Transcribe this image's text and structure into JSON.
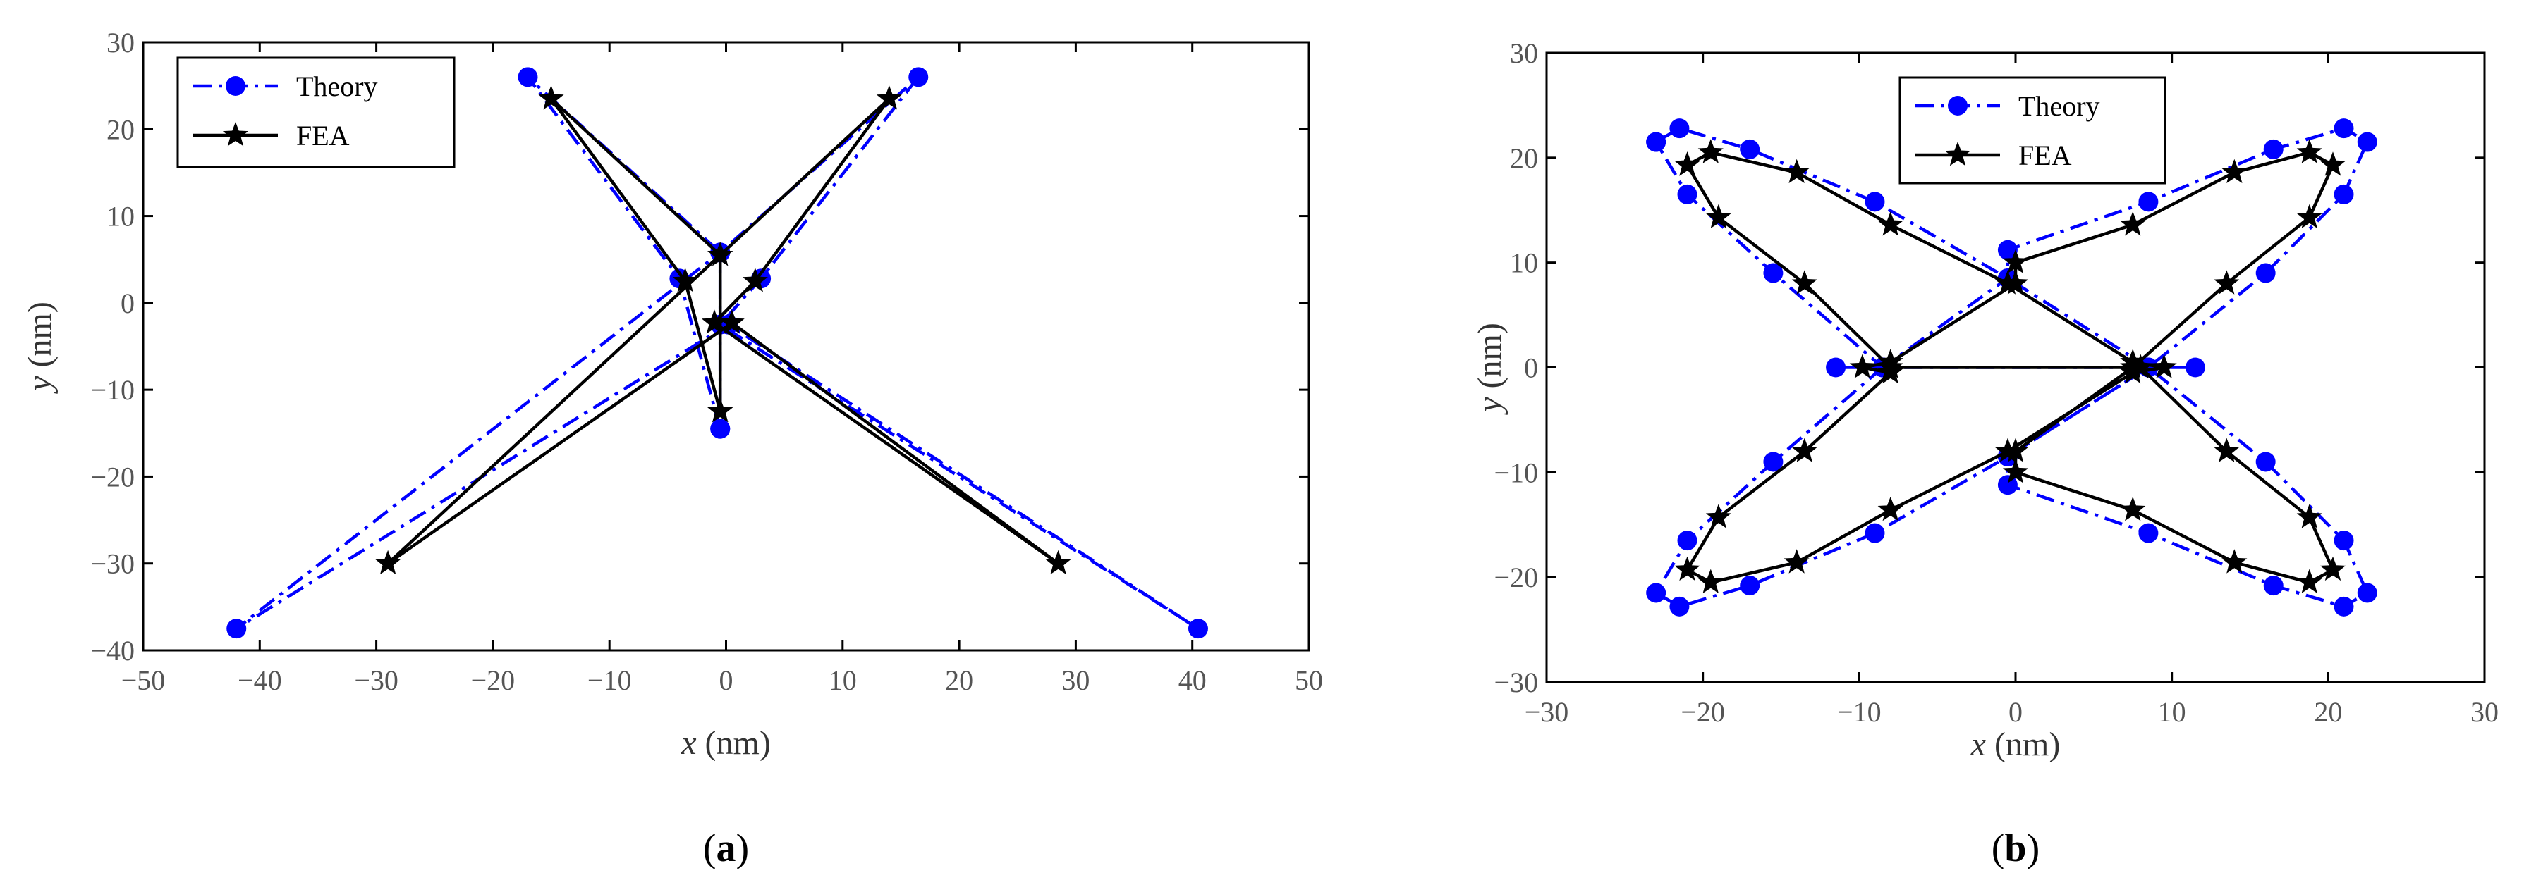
{
  "chart_data": [
    {
      "panel": "(a)",
      "panel_letter": "a",
      "type": "line",
      "title": "",
      "xlabel": "x (nm)",
      "xlabel_var": "x",
      "xlabel_unit": "(nm)",
      "ylabel": "y (nm)",
      "ylabel_var": "y",
      "ylabel_unit": "(nm)",
      "xlim": [
        -50,
        50
      ],
      "ylim": [
        -40,
        30
      ],
      "xticks": [
        -50,
        -40,
        -30,
        -20,
        -10,
        0,
        10,
        20,
        30,
        40,
        50
      ],
      "yticks": [
        -40,
        -30,
        -20,
        -10,
        0,
        10,
        20,
        30
      ],
      "xtick_labels": [
        "−50",
        "−40",
        "−30",
        "−20",
        "−10",
        "0",
        "10",
        "20",
        "30",
        "40",
        "50"
      ],
      "ytick_labels": [
        "−40",
        "−30",
        "−20",
        "−10",
        "0",
        "10",
        "20",
        "30"
      ],
      "grid": false,
      "legend_position": "top-left",
      "series": [
        {
          "name": "Theory",
          "color": "#0000ff",
          "line_style": "dash-dot",
          "marker": "circle",
          "points": [
            [
              -0.5,
              -14.5
            ],
            [
              -4,
              2.8
            ],
            [
              -17,
              26
            ],
            [
              -0.5,
              5.8
            ],
            [
              16.5,
              26
            ],
            [
              3,
              2.8
            ],
            [
              -0.5,
              -2.5
            ],
            [
              40.5,
              -37.5
            ],
            [
              0.2,
              -2.5
            ],
            [
              -42,
              -37.5
            ],
            [
              -0.5,
              5.8
            ],
            [
              -0.5,
              -14.5
            ]
          ]
        },
        {
          "name": "FEA",
          "color": "#000000",
          "line_style": "solid",
          "marker": "star",
          "points": [
            [
              -0.5,
              -12.5
            ],
            [
              -3.5,
              2.5
            ],
            [
              -15,
              23.5
            ],
            [
              -0.5,
              5.5
            ],
            [
              14,
              23.5
            ],
            [
              2.5,
              2.5
            ],
            [
              -1,
              -2.3
            ],
            [
              28.5,
              -30
            ],
            [
              0.5,
              -2.3
            ],
            [
              -29,
              -30
            ],
            [
              -0.5,
              5.5
            ],
            [
              -0.5,
              -12.5
            ]
          ]
        }
      ]
    },
    {
      "panel": "(b)",
      "panel_letter": "b",
      "type": "line",
      "title": "",
      "xlabel": "x (nm)",
      "xlabel_var": "x",
      "xlabel_unit": "(nm)",
      "ylabel": "y (nm)",
      "ylabel_var": "y",
      "ylabel_unit": "(nm)",
      "xlim": [
        -30,
        30
      ],
      "ylim": [
        -30,
        30
      ],
      "xticks": [
        -30,
        -20,
        -10,
        0,
        10,
        20,
        30
      ],
      "yticks": [
        -30,
        -20,
        -10,
        0,
        10,
        20,
        30
      ],
      "xtick_labels": [
        "−30",
        "−20",
        "−10",
        "0",
        "10",
        "20",
        "30"
      ],
      "ytick_labels": [
        "−30",
        "−20",
        "−10",
        "0",
        "10",
        "20",
        "30"
      ],
      "grid": false,
      "legend_position": "top-center",
      "series": [
        {
          "name": "Theory",
          "color": "#0000ff",
          "line_style": "dash-dot",
          "marker": "circle",
          "points": [
            [
              -23,
              21.5
            ],
            [
              -21.5,
              22.8
            ],
            [
              -17,
              20.8
            ],
            [
              -9,
              15.8
            ],
            [
              -0.5,
              8.5
            ],
            [
              8.5,
              0
            ],
            [
              11.5,
              0
            ],
            [
              8.5,
              0
            ],
            [
              -0.5,
              -8.5
            ],
            [
              -9,
              -15.8
            ],
            [
              -17,
              -20.8
            ],
            [
              -21.5,
              -22.8
            ],
            [
              -23,
              -21.5
            ],
            [
              -21,
              -16.5
            ],
            [
              -15.5,
              -9
            ],
            [
              -8.5,
              0
            ],
            [
              -11.5,
              0
            ],
            [
              -8.5,
              0
            ],
            [
              -0.5,
              8.5
            ],
            [
              -0.5,
              11.2
            ],
            [
              8.5,
              15.8
            ],
            [
              16.5,
              20.8
            ],
            [
              21,
              22.8
            ],
            [
              22.5,
              21.5
            ],
            [
              21,
              16.5
            ],
            [
              16,
              9
            ],
            [
              8.5,
              0
            ],
            [
              -0.5,
              -8.5
            ],
            [
              -0.5,
              -11.2
            ],
            [
              8.5,
              -15.8
            ],
            [
              16.5,
              -20.8
            ],
            [
              21,
              -22.8
            ],
            [
              22.5,
              -21.5
            ],
            [
              21,
              -16.5
            ],
            [
              16,
              -9
            ],
            [
              8.5,
              0
            ],
            [
              -8.5,
              0
            ],
            [
              -15.5,
              9
            ],
            [
              -21,
              16.5
            ],
            [
              -23,
              21.5
            ]
          ]
        },
        {
          "name": "FEA",
          "color": "#000000",
          "line_style": "solid",
          "marker": "star",
          "points": [
            [
              -21,
              19.3
            ],
            [
              -19.5,
              20.5
            ],
            [
              -14,
              18.6
            ],
            [
              -8,
              13.6
            ],
            [
              -0.5,
              8
            ],
            [
              7.5,
              0.5
            ],
            [
              9.5,
              0
            ],
            [
              7.5,
              -0.5
            ],
            [
              -0.5,
              -8
            ],
            [
              -8,
              -13.6
            ],
            [
              -14,
              -18.6
            ],
            [
              -19.5,
              -20.5
            ],
            [
              -21,
              -19.3
            ],
            [
              -19,
              -14.3
            ],
            [
              -13.5,
              -8
            ],
            [
              -8,
              -0.5
            ],
            [
              -9.8,
              0
            ],
            [
              -8,
              0.5
            ],
            [
              0,
              8
            ],
            [
              0,
              10
            ],
            [
              7.5,
              13.6
            ],
            [
              14,
              18.6
            ],
            [
              18.8,
              20.5
            ],
            [
              20.3,
              19.3
            ],
            [
              18.8,
              14.3
            ],
            [
              13.5,
              8
            ],
            [
              7.5,
              0
            ],
            [
              0,
              -8
            ],
            [
              0,
              -10
            ],
            [
              7.5,
              -13.6
            ],
            [
              14,
              -18.6
            ],
            [
              18.8,
              -20.5
            ],
            [
              20.3,
              -19.3
            ],
            [
              18.8,
              -14.3
            ],
            [
              13.5,
              -8
            ],
            [
              8,
              0
            ],
            [
              -8,
              0
            ],
            [
              -13.5,
              8
            ],
            [
              -19,
              14.3
            ],
            [
              -21,
              19.3
            ]
          ]
        }
      ]
    }
  ]
}
